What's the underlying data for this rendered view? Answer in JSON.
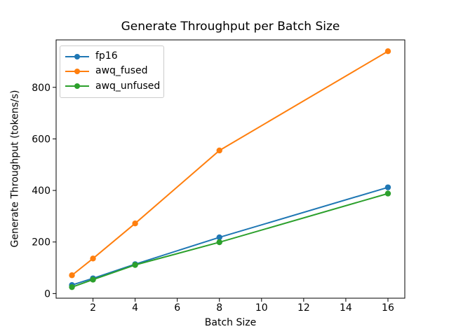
{
  "chart_data": {
    "type": "line",
    "title": "Generate Throughput per Batch Size",
    "xlabel": "Batch Size",
    "ylabel": "Generate Throughput (tokens/s)",
    "x": [
      1,
      2,
      4,
      8,
      16
    ],
    "series": [
      {
        "name": "fp16",
        "color": "#1f77b4",
        "values": [
          33,
          59,
          114,
          218,
          412
        ]
      },
      {
        "name": "awq_fused",
        "color": "#ff7f0e",
        "values": [
          71,
          136,
          272,
          555,
          940
        ]
      },
      {
        "name": "awq_unfused",
        "color": "#2ca02c",
        "values": [
          25,
          54,
          111,
          199,
          388
        ]
      }
    ],
    "marker": "o",
    "grid": false,
    "legend_position": "upper left",
    "xticks": [
      2,
      4,
      6,
      8,
      10,
      12,
      14,
      16
    ],
    "yticks": [
      0,
      200,
      400,
      600,
      800
    ],
    "xlim": [
      0.25,
      16.8
    ],
    "ylim": [
      -18,
      984
    ],
    "axis_color": "#000000",
    "legend_border_color": "#cccccc"
  }
}
